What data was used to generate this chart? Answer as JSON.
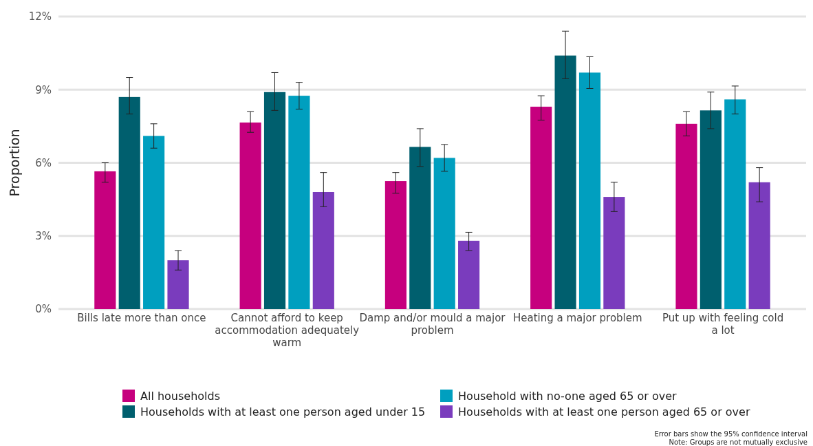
{
  "chart_data": {
    "type": "bar",
    "ylabel": "Proportion",
    "categories": [
      "Bills late more than once",
      "Cannot afford to keep accommodation adequately warm",
      "Damp and/or mould a major problem",
      "Heating a major problem",
      "Put up with feeling cold a lot"
    ],
    "series": [
      {
        "name": "All households",
        "color": "#c6007e",
        "values": [
          5.65,
          7.65,
          5.25,
          8.3,
          7.6
        ],
        "errors": [
          [
            5.2,
            6.0
          ],
          [
            7.25,
            8.1
          ],
          [
            4.75,
            5.6
          ],
          [
            7.75,
            8.75
          ],
          [
            7.1,
            8.1
          ]
        ]
      },
      {
        "name": "Households with at least one person aged under 15",
        "color": "#005f6e",
        "values": [
          8.7,
          8.9,
          6.65,
          10.4,
          8.15
        ],
        "errors": [
          [
            8.0,
            9.5
          ],
          [
            8.15,
            9.7
          ],
          [
            5.85,
            7.4
          ],
          [
            9.45,
            11.4
          ],
          [
            7.4,
            8.9
          ]
        ]
      },
      {
        "name": "Household with no-one aged 65 or over",
        "color": "#009fbf",
        "values": [
          7.1,
          8.75,
          6.2,
          9.7,
          8.6
        ],
        "errors": [
          [
            6.6,
            7.6
          ],
          [
            8.2,
            9.3
          ],
          [
            5.65,
            6.75
          ],
          [
            9.05,
            10.35
          ],
          [
            8.0,
            9.15
          ]
        ]
      },
      {
        "name": "Households with at least one person aged 65 or over",
        "color": "#7a3cbd",
        "values": [
          2.0,
          4.8,
          2.8,
          4.6,
          5.2
        ],
        "errors": [
          [
            1.6,
            2.4
          ],
          [
            4.2,
            5.6
          ],
          [
            2.4,
            3.15
          ],
          [
            4.0,
            5.2
          ],
          [
            4.4,
            5.8
          ]
        ]
      }
    ],
    "ylim": [
      0,
      12
    ],
    "yticks": [
      {
        "value": 0,
        "label": "0%"
      },
      {
        "value": 3,
        "label": "3%"
      },
      {
        "value": 6,
        "label": "6%"
      },
      {
        "value": 9,
        "label": "9%"
      },
      {
        "value": 12,
        "label": "12%"
      }
    ],
    "grid": "y",
    "legend": "bottom",
    "annotations": [
      "Error bars show the 95% confidence interval",
      "Note: Groups are not mutually exclusive"
    ]
  }
}
